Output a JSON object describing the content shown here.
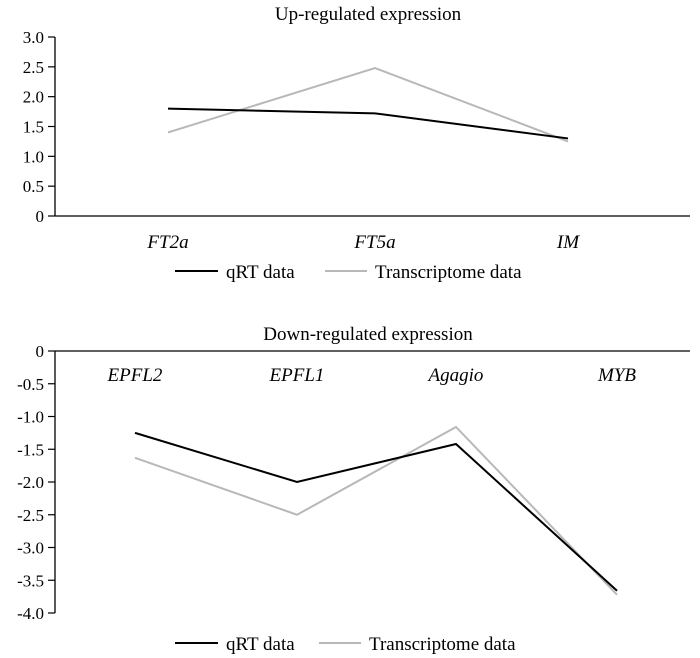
{
  "chart_data": [
    {
      "type": "line",
      "title": "Up-regulated expression",
      "categories": [
        "FT2a",
        "FT5a",
        "IM"
      ],
      "series": [
        {
          "name": "qRT data",
          "values": [
            1.8,
            1.72,
            1.3
          ],
          "color": "#000000"
        },
        {
          "name": "Transcriptome data",
          "values": [
            1.4,
            2.48,
            1.25
          ],
          "color": "#b8b8b8"
        }
      ],
      "ylim": [
        0,
        3.0
      ],
      "yticks": [
        "0",
        "0.5",
        "1.0",
        "1.5",
        "2.0",
        "2.5",
        "3.0"
      ],
      "grid": false,
      "legend_position": "bottom"
    },
    {
      "type": "line",
      "title": "Down-regulated expression",
      "categories": [
        "EPFL2",
        "EPFL1",
        "Agagio",
        "MYB"
      ],
      "series": [
        {
          "name": "qRT data",
          "values": [
            -1.25,
            -2.0,
            -1.42,
            -3.66
          ],
          "color": "#000000"
        },
        {
          "name": "Transcriptome data",
          "values": [
            -1.63,
            -2.5,
            -1.16,
            -3.72
          ],
          "color": "#b8b8b8"
        }
      ],
      "ylim": [
        -4.0,
        0
      ],
      "yticks": [
        "0",
        "-0.5",
        "-1.0",
        "-1.5",
        "-2.0",
        "-2.5",
        "-3.0",
        "-3.5",
        "-4.0"
      ],
      "grid": false,
      "legend_position": "bottom"
    }
  ]
}
